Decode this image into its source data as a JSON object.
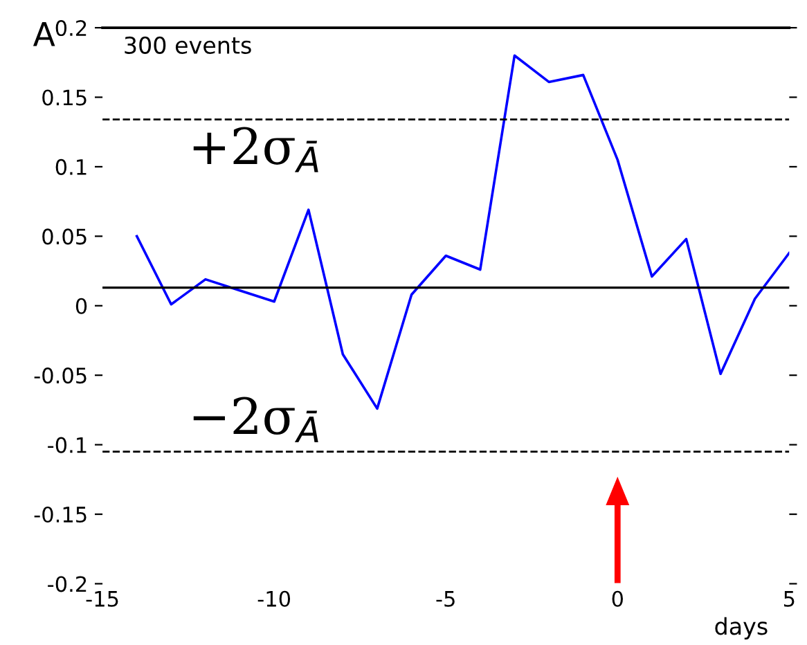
{
  "chart_data": {
    "type": "line",
    "ylabel": "A",
    "xlabel": "days",
    "x": [
      -14,
      -13,
      -12,
      -11,
      -10,
      -9,
      -8,
      -7,
      -6,
      -5,
      -4,
      -3,
      -2,
      -1,
      0,
      1,
      2,
      3,
      4,
      5
    ],
    "series": [
      {
        "color": "#0000ff",
        "values": [
          0.05,
          0.001,
          0.019,
          0.011,
          0.003,
          0.069,
          -0.035,
          -0.074,
          0.008,
          0.036,
          0.026,
          0.18,
          0.161,
          0.166,
          0.105,
          0.021,
          0.048,
          -0.049,
          0.005,
          0.038
        ]
      }
    ],
    "xlim": [
      -15,
      5
    ],
    "ylim": [
      -0.2,
      0.2
    ],
    "xticks": [
      {
        "value": -15,
        "label": "-15"
      },
      {
        "value": -10,
        "label": "-10"
      },
      {
        "value": -5,
        "label": "-5"
      },
      0,
      5
    ],
    "yticks": [
      {
        "value": -0.2,
        "label": "-0.2"
      },
      {
        "value": -0.15,
        "label": "-0.15"
      },
      {
        "value": -0.1,
        "label": "-0.1"
      },
      {
        "value": -0.05,
        "label": "-0.05"
      },
      0,
      0.05,
      0.1,
      0.15,
      0.2
    ],
    "ref_lines": [
      {
        "axis": "y",
        "value": 0.013,
        "color": "#000000",
        "line_style": "solid"
      },
      {
        "axis": "y",
        "value": 0.134,
        "label": "+2σ$_{Ā}$",
        "color": "#000000",
        "line_style": "dashed"
      },
      {
        "axis": "y",
        "value": -0.105,
        "label": "−2σ$_{Ā}$",
        "color": "#000000",
        "line_style": "dashed"
      }
    ],
    "annotations": [
      "300 events"
    ],
    "grid": false,
    "legend": false,
    "marker": "none",
    "line_style": "solid"
  }
}
